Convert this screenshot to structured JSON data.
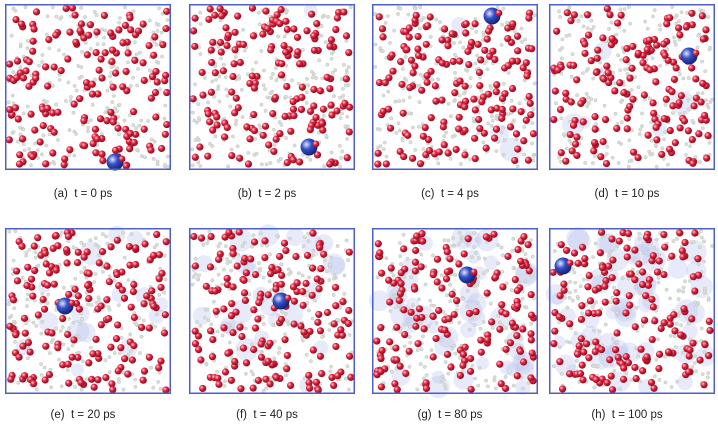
{
  "colors": {
    "box_edge": "#4f5fc9",
    "oxygen": "#e0243f",
    "hydrogen": "#d9ded9",
    "tracked_ion": "#3550c8",
    "ion_trail": "#b9c3ef"
  },
  "panels": [
    {
      "label": "(a)  t = 0 ps",
      "ion_trail_density": 0.0
    },
    {
      "label": "(b)  t = 2 ps",
      "ion_trail_density": 0.02
    },
    {
      "label": "(c)  t = 4 ps",
      "ion_trail_density": 0.05
    },
    {
      "label": "(d)  t = 10 ps",
      "ion_trail_density": 0.1
    },
    {
      "label": "(e)  t = 20 ps",
      "ion_trail_density": 0.25
    },
    {
      "label": "(f)  t = 40 ps",
      "ion_trail_density": 0.4
    },
    {
      "label": "(g)  t = 80 ps",
      "ion_trail_density": 0.7
    },
    {
      "label": "(h)  t = 100 ps",
      "ion_trail_density": 0.85
    }
  ]
}
